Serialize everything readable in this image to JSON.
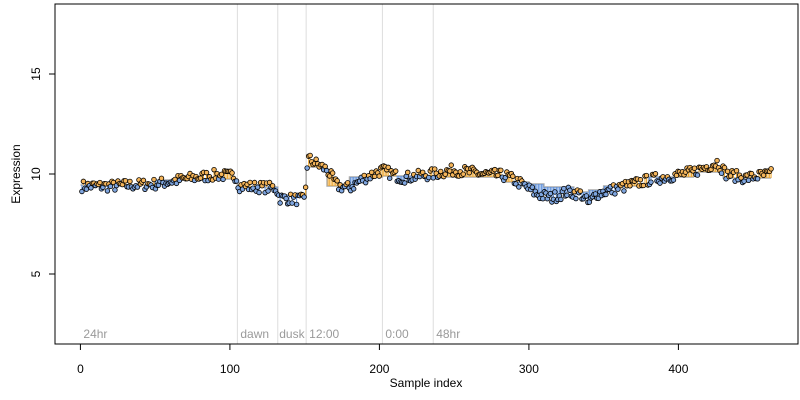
{
  "chart_data": {
    "type": "scatter",
    "title": "",
    "xlabel": "Sample index",
    "ylabel": "Expression",
    "xlim": [
      -17,
      480
    ],
    "ylim": [
      1.5,
      18.5
    ],
    "x_ticks": [
      0,
      100,
      200,
      300,
      400
    ],
    "y_ticks": [
      5,
      10,
      15
    ],
    "grid": false,
    "legend": "none",
    "phase_boundaries": [
      105,
      132,
      151,
      202,
      236
    ],
    "phase_labels": [
      {
        "text": "24hr",
        "x": 2
      },
      {
        "text": "dawn",
        "x": 107
      },
      {
        "text": "dusk",
        "x": 133
      },
      {
        "text": "12:00",
        "x": 153
      },
      {
        "text": "0:00",
        "x": 204
      },
      {
        "text": "48hr",
        "x": 238
      }
    ],
    "fit_segments": [
      {
        "x_start": 0,
        "x_end": 50,
        "y": 9.45
      },
      {
        "x_start": 50,
        "x_end": 90,
        "y": 9.7
      },
      {
        "x_start": 90,
        "x_end": 105,
        "y": 9.75
      },
      {
        "x_start": 105,
        "x_end": 132,
        "y": 9.35
      },
      {
        "x_start": 132,
        "x_end": 151,
        "y": 8.95
      },
      {
        "x_start": 151,
        "x_end": 165,
        "y": 10.35
      },
      {
        "x_start": 165,
        "x_end": 180,
        "y": 9.4
      },
      {
        "x_start": 180,
        "x_end": 202,
        "y": 9.85
      },
      {
        "x_start": 202,
        "x_end": 236,
        "y": 9.9
      },
      {
        "x_start": 236,
        "x_end": 285,
        "y": 9.85
      },
      {
        "x_start": 285,
        "x_end": 300,
        "y": 9.6
      },
      {
        "x_start": 300,
        "x_end": 310,
        "y": 9.5
      },
      {
        "x_start": 310,
        "x_end": 330,
        "y": 9.35
      },
      {
        "x_start": 330,
        "x_end": 340,
        "y": 9.1
      },
      {
        "x_start": 340,
        "x_end": 350,
        "y": 9.2
      },
      {
        "x_start": 350,
        "x_end": 380,
        "y": 9.4
      },
      {
        "x_start": 380,
        "x_end": 410,
        "y": 9.85
      },
      {
        "x_start": 410,
        "x_end": 430,
        "y": 10.1
      },
      {
        "x_start": 430,
        "x_end": 462,
        "y": 9.8
      }
    ],
    "profile_points": [
      [
        0,
        9.4
      ],
      [
        20,
        9.4
      ],
      [
        50,
        9.5
      ],
      [
        70,
        9.75
      ],
      [
        90,
        9.95
      ],
      [
        104,
        9.9
      ],
      [
        106,
        9.4
      ],
      [
        131,
        9.3
      ],
      [
        133,
        8.8
      ],
      [
        150,
        8.7
      ],
      [
        152,
        10.8
      ],
      [
        156,
        10.6
      ],
      [
        165,
        10.2
      ],
      [
        172,
        9.4
      ],
      [
        180,
        9.3
      ],
      [
        190,
        9.8
      ],
      [
        202,
        10.2
      ],
      [
        215,
        9.8
      ],
      [
        236,
        10.0
      ],
      [
        250,
        10.2
      ],
      [
        270,
        10.0
      ],
      [
        285,
        9.9
      ],
      [
        295,
        9.5
      ],
      [
        305,
        9.0
      ],
      [
        315,
        8.8
      ],
      [
        325,
        9.1
      ],
      [
        335,
        9.0
      ],
      [
        340,
        8.5
      ],
      [
        345,
        9.0
      ],
      [
        360,
        9.3
      ],
      [
        380,
        9.7
      ],
      [
        395,
        9.9
      ],
      [
        410,
        10.1
      ],
      [
        420,
        10.4
      ],
      [
        426,
        10.6
      ],
      [
        432,
        10.0
      ],
      [
        445,
        9.8
      ],
      [
        462,
        10.0
      ]
    ],
    "n_points": 460,
    "colors": {
      "marker_high": "#f5b55a",
      "marker_low": "#7fa6e0",
      "stem_high": "#f0a830",
      "stem_low": "#5b8fdc",
      "fit_line": "#aaaaaa",
      "phase_line": "#dddddd",
      "phase_label": "#9a9a9a"
    }
  }
}
